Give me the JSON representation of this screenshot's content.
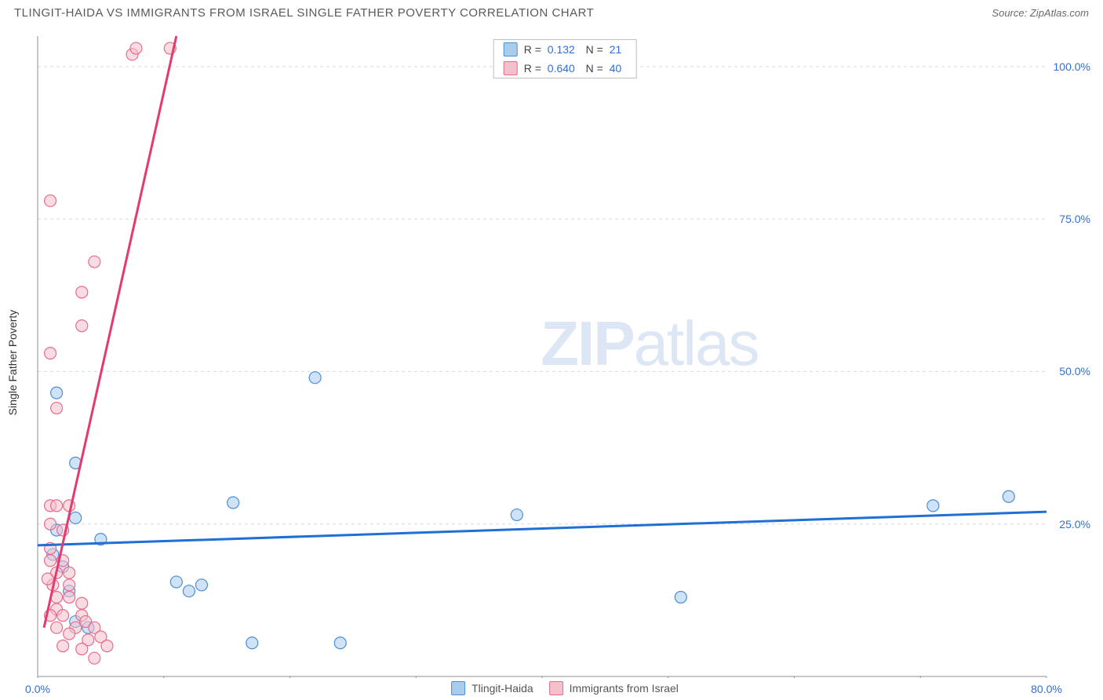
{
  "title": "TLINGIT-HAIDA VS IMMIGRANTS FROM ISRAEL SINGLE FATHER POVERTY CORRELATION CHART",
  "source_label": "Source:",
  "source_name": "ZipAtlas.com",
  "y_axis_label": "Single Father Poverty",
  "watermark_zip": "ZIP",
  "watermark_rest": "atlas",
  "chart": {
    "type": "scatter-with-regression",
    "background_color": "#ffffff",
    "plot_border_color": "#8f8f8f",
    "grid_color": "#d9d9d9",
    "x_range": [
      0,
      80
    ],
    "y_range": [
      0,
      105
    ],
    "x_ticks": [
      0,
      40,
      80
    ],
    "x_tick_labels": [
      "0.0%",
      "",
      "80.0%"
    ],
    "x_minor_ticks": [
      10,
      20,
      30,
      50,
      60,
      70
    ],
    "y_ticks": [
      25,
      50,
      75,
      100
    ],
    "y_tick_labels": [
      "25.0%",
      "50.0%",
      "75.0%",
      "100.0%"
    ],
    "marker_radius": 7.5,
    "marker_opacity": 0.55,
    "line_width": 3,
    "series": [
      {
        "name": "Tlingit-Haida",
        "color_fill": "#a9cbec",
        "color_stroke": "#4b8fd4",
        "line_color": "#1f6fd6",
        "R": "0.132",
        "N": "21",
        "points": [
          [
            1.5,
            46.5
          ],
          [
            3.0,
            35.0
          ],
          [
            3.0,
            26.0
          ],
          [
            1.5,
            24.0
          ],
          [
            1.2,
            20.0
          ],
          [
            5.0,
            22.5
          ],
          [
            2.0,
            18.0
          ],
          [
            2.5,
            14.0
          ],
          [
            3.0,
            9.0
          ],
          [
            11.0,
            15.5
          ],
          [
            13.0,
            15.0
          ],
          [
            12.0,
            14.0
          ],
          [
            15.5,
            28.5
          ],
          [
            17.0,
            5.5
          ],
          [
            24.0,
            5.5
          ],
          [
            22.0,
            49.0
          ],
          [
            38.0,
            26.5
          ],
          [
            51.0,
            13.0
          ],
          [
            71.0,
            28.0
          ],
          [
            77.0,
            29.5
          ],
          [
            4.0,
            8.0
          ]
        ],
        "regression": {
          "x1": 0,
          "y1": 21.5,
          "x2": 80,
          "y2": 27.0
        }
      },
      {
        "name": "Immigrants from Israel",
        "color_fill": "#f4c0cc",
        "color_stroke": "#e86b8c",
        "line_color": "#e43a6e",
        "R": "0.640",
        "N": "40",
        "points": [
          [
            7.5,
            102.0
          ],
          [
            7.8,
            103.0
          ],
          [
            10.5,
            103.0
          ],
          [
            1.0,
            78.0
          ],
          [
            4.5,
            68.0
          ],
          [
            3.5,
            63.0
          ],
          [
            3.5,
            57.5
          ],
          [
            1.0,
            53.0
          ],
          [
            1.5,
            44.0
          ],
          [
            1.0,
            28.0
          ],
          [
            1.5,
            28.0
          ],
          [
            2.5,
            28.0
          ],
          [
            1.0,
            25.0
          ],
          [
            2.0,
            24.0
          ],
          [
            1.0,
            21.0
          ],
          [
            1.0,
            19.0
          ],
          [
            2.0,
            19.0
          ],
          [
            1.5,
            17.0
          ],
          [
            2.5,
            17.0
          ],
          [
            1.2,
            15.0
          ],
          [
            2.5,
            15.0
          ],
          [
            1.5,
            13.0
          ],
          [
            2.5,
            13.0
          ],
          [
            3.5,
            12.0
          ],
          [
            1.5,
            11.0
          ],
          [
            1.0,
            10.0
          ],
          [
            2.0,
            10.0
          ],
          [
            3.5,
            10.0
          ],
          [
            3.8,
            9.0
          ],
          [
            1.5,
            8.0
          ],
          [
            3.0,
            8.0
          ],
          [
            4.5,
            8.0
          ],
          [
            2.5,
            7.0
          ],
          [
            4.0,
            6.0
          ],
          [
            5.0,
            6.5
          ],
          [
            2.0,
            5.0
          ],
          [
            3.5,
            4.5
          ],
          [
            4.5,
            3.0
          ],
          [
            5.5,
            5.0
          ],
          [
            0.8,
            16.0
          ]
        ],
        "regression": {
          "x1": 0.5,
          "y1": 8.0,
          "x2": 11.0,
          "y2": 105.0
        }
      }
    ]
  },
  "legend_top_rows": [
    {
      "swatch_fill": "#a9cbec",
      "swatch_stroke": "#4b8fd4",
      "r_label": "R =",
      "r_val": "0.132",
      "n_label": "N =",
      "n_val": "21"
    },
    {
      "swatch_fill": "#f4c0cc",
      "swatch_stroke": "#e86b8c",
      "r_label": "R =",
      "r_val": "0.640",
      "n_label": "N =",
      "n_val": "40"
    }
  ],
  "legend_bottom": [
    {
      "swatch_fill": "#a9cbec",
      "swatch_stroke": "#4b8fd4",
      "label": "Tlingit-Haida"
    },
    {
      "swatch_fill": "#f4c0cc",
      "swatch_stroke": "#e86b8c",
      "label": "Immigrants from Israel"
    }
  ]
}
